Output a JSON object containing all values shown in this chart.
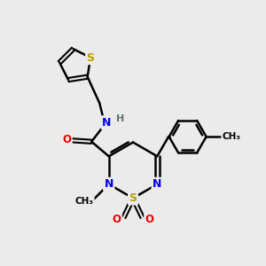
{
  "bg_color": "#ebebeb",
  "atom_colors": {
    "S": "#b8a000",
    "N": "#0000ee",
    "O": "#ee0000",
    "C": "#000000",
    "H": "#607070"
  },
  "bond_color": "#000000",
  "bond_width": 1.8,
  "figsize": [
    3.0,
    3.0
  ],
  "dpi": 100
}
